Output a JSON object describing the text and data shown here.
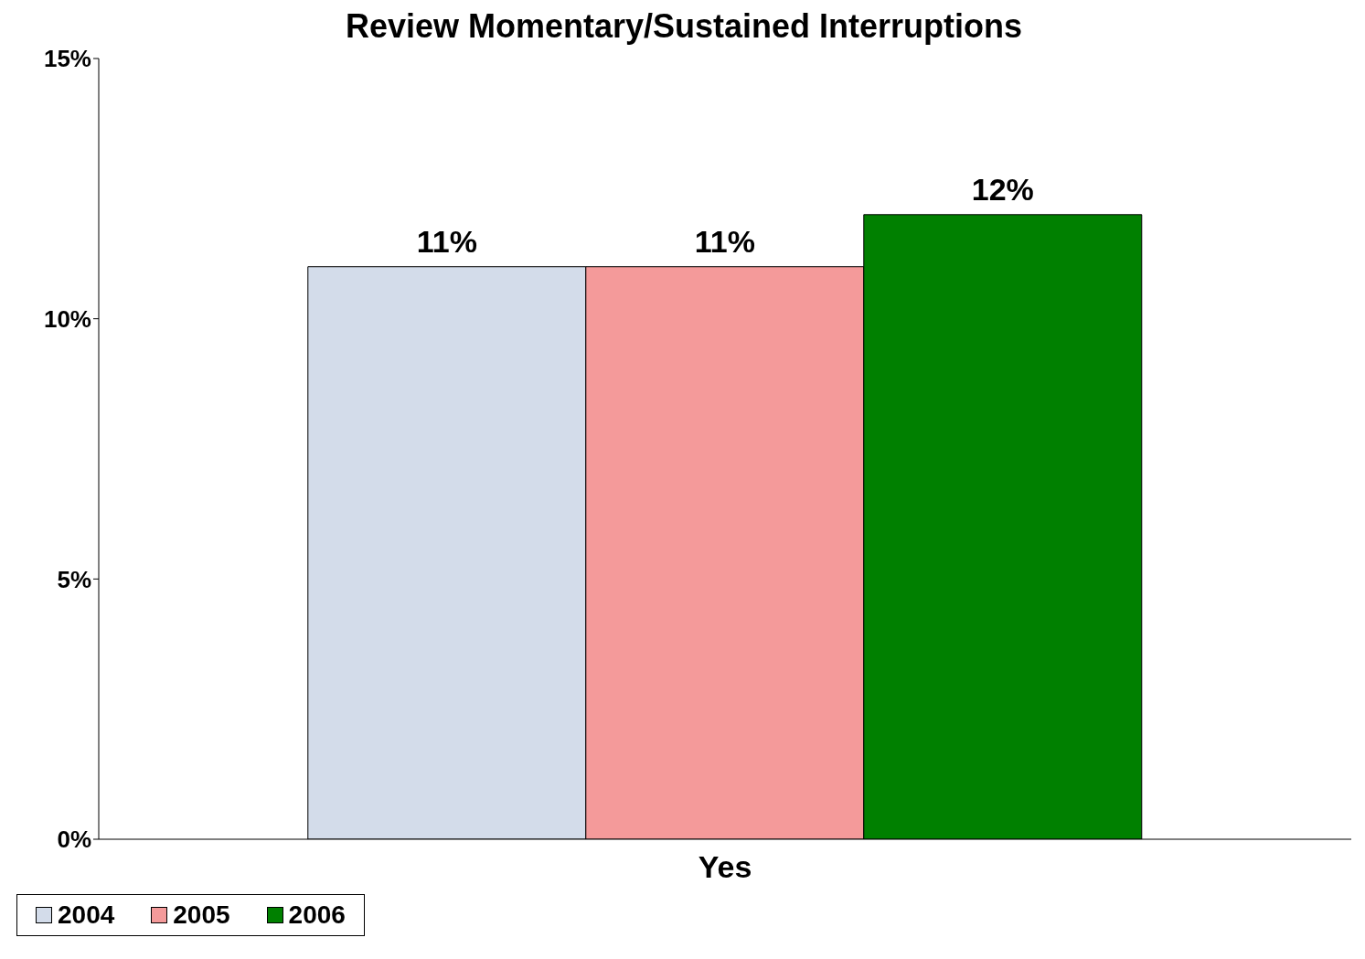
{
  "chart_data": {
    "type": "bar",
    "title": "Review Momentary/Sustained Interruptions",
    "categories": [
      "Yes"
    ],
    "series": [
      {
        "name": "2004",
        "color": "#d3dcea",
        "values": [
          11
        ],
        "value_labels": [
          "11%"
        ]
      },
      {
        "name": "2005",
        "color": "#f49a9a",
        "values": [
          11
        ],
        "value_labels": [
          "11%"
        ]
      },
      {
        "name": "2006",
        "color": "#008000",
        "values": [
          12
        ],
        "value_labels": [
          "12%"
        ]
      }
    ],
    "ylim": [
      0,
      15
    ],
    "yticks": [
      {
        "value": 0,
        "label": "0%"
      },
      {
        "value": 5,
        "label": "5%"
      },
      {
        "value": 10,
        "label": "10%"
      },
      {
        "value": 15,
        "label": "15%"
      }
    ],
    "grid": false,
    "legend": "bottom"
  }
}
